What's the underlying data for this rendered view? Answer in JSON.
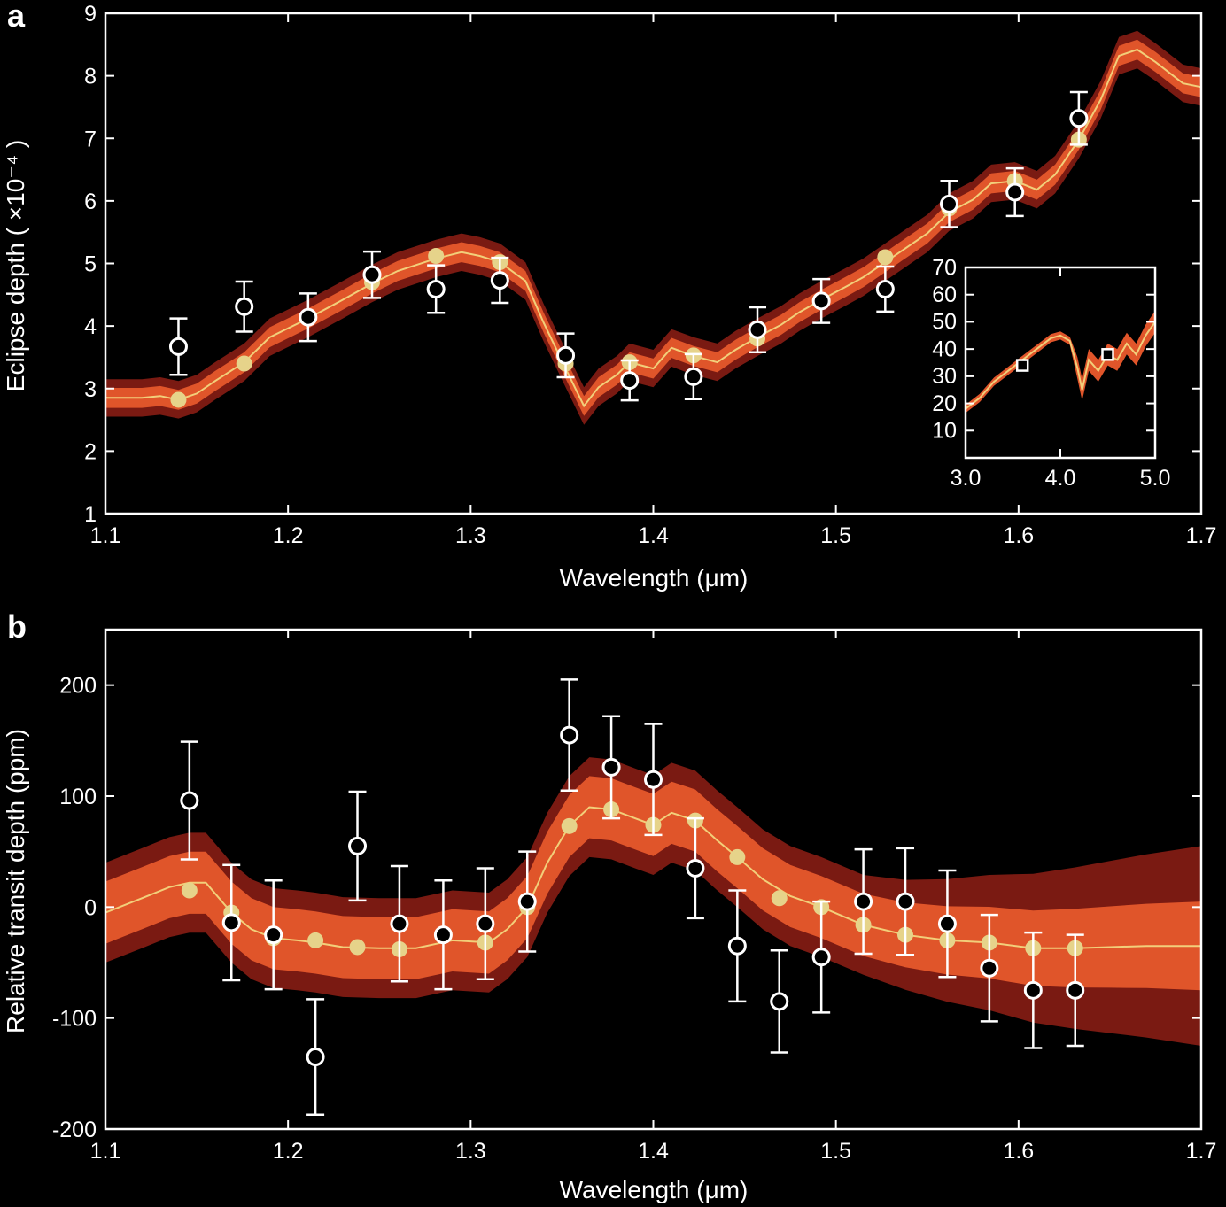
{
  "colors": {
    "background": "#000000",
    "axes": "#ffffff",
    "band_outer": "#7a1a12",
    "band_inner": "#e0552a",
    "model_line": "#f2cf7a",
    "model_point": "#e6d38a",
    "data_point": "#ffffff"
  },
  "chart_data": [
    {
      "type": "scatter",
      "panel_label": "a",
      "xlabel": "Wavelength  (μm)",
      "ylabel": "Eclipse depth ( ×10⁻⁴ )",
      "xlim": [
        1.1,
        1.7
      ],
      "ylim": [
        1,
        9
      ],
      "xticks": [
        "1.1",
        "1.2",
        "1.3",
        "1.4",
        "1.5",
        "1.6",
        "1.7"
      ],
      "yticks": [
        "1",
        "2",
        "3",
        "4",
        "5",
        "6",
        "7",
        "8",
        "9"
      ],
      "data_points": {
        "x": [
          1.14,
          1.176,
          1.211,
          1.246,
          1.281,
          1.316,
          1.352,
          1.387,
          1.422,
          1.457,
          1.492,
          1.527,
          1.562,
          1.598,
          1.633
        ],
        "y": [
          3.67,
          4.31,
          4.14,
          4.82,
          4.59,
          4.73,
          3.53,
          3.13,
          3.19,
          3.94,
          4.4,
          4.59,
          5.95,
          6.14,
          7.32
        ],
        "err": [
          0.45,
          0.4,
          0.38,
          0.37,
          0.38,
          0.36,
          0.35,
          0.32,
          0.36,
          0.36,
          0.35,
          0.36,
          0.37,
          0.38,
          0.42
        ]
      },
      "model_points": {
        "x": [
          1.14,
          1.176,
          1.211,
          1.246,
          1.281,
          1.316,
          1.352,
          1.387,
          1.422,
          1.457,
          1.492,
          1.527,
          1.562,
          1.598,
          1.633
        ],
        "y": [
          2.82,
          3.4,
          4.14,
          4.7,
          5.12,
          5.02,
          3.4,
          3.42,
          3.53,
          3.8,
          4.4,
          5.1,
          5.88,
          6.32,
          6.98
        ]
      },
      "model_line": {
        "x": [
          1.1,
          1.12,
          1.13,
          1.14,
          1.15,
          1.16,
          1.176,
          1.19,
          1.211,
          1.23,
          1.246,
          1.26,
          1.281,
          1.295,
          1.305,
          1.316,
          1.33,
          1.34,
          1.352,
          1.362,
          1.37,
          1.38,
          1.387,
          1.4,
          1.41,
          1.422,
          1.435,
          1.445,
          1.457,
          1.47,
          1.48,
          1.492,
          1.505,
          1.515,
          1.527,
          1.54,
          1.55,
          1.562,
          1.575,
          1.585,
          1.598,
          1.61,
          1.62,
          1.633,
          1.645,
          1.655,
          1.665,
          1.675,
          1.69,
          1.7
        ],
        "y": [
          2.85,
          2.85,
          2.88,
          2.82,
          2.92,
          3.12,
          3.42,
          3.82,
          4.12,
          4.42,
          4.68,
          4.88,
          5.08,
          5.18,
          5.12,
          5.02,
          4.72,
          4.05,
          3.32,
          2.72,
          3.02,
          3.22,
          3.42,
          3.32,
          3.65,
          3.52,
          3.42,
          3.62,
          3.82,
          4.02,
          4.22,
          4.42,
          4.62,
          4.78,
          5.02,
          5.28,
          5.48,
          5.82,
          6.02,
          6.28,
          6.32,
          6.18,
          6.42,
          6.98,
          7.62,
          8.32,
          8.42,
          8.22,
          7.88,
          7.82
        ]
      },
      "band_inner_halfwidth": 0.16,
      "band_outer_halfwidth": 0.3,
      "inset": {
        "type": "line",
        "xlim": [
          3.0,
          5.0
        ],
        "ylim": [
          0,
          70
        ],
        "xticks": [
          "3.0",
          "4.0",
          "5.0"
        ],
        "yticks": [
          "10",
          "20",
          "30",
          "40",
          "50",
          "60",
          "70"
        ],
        "model_line": {
          "x": [
            3.0,
            3.15,
            3.3,
            3.45,
            3.6,
            3.75,
            3.9,
            4.0,
            4.1,
            4.18,
            4.23,
            4.3,
            4.4,
            4.5,
            4.6,
            4.7,
            4.8,
            4.9,
            5.0
          ],
          "y": [
            18,
            22,
            28,
            32,
            36,
            40,
            44,
            45,
            43,
            33,
            25,
            36,
            32,
            38,
            36,
            42,
            38,
            45,
            50
          ]
        },
        "data_points": {
          "x": [
            3.6,
            4.5
          ],
          "y": [
            34,
            38
          ]
        }
      }
    },
    {
      "type": "scatter",
      "panel_label": "b",
      "xlabel": "Wavelength  (μm)",
      "ylabel": "Relative transit depth (ppm)",
      "xlim": [
        1.1,
        1.7
      ],
      "ylim": [
        -200,
        250
      ],
      "xticks": [
        "1.1",
        "1.2",
        "1.3",
        "1.4",
        "1.5",
        "1.6",
        "1.7"
      ],
      "yticks": [
        "-200",
        "-100",
        "0",
        "100",
        "200"
      ],
      "data_points": {
        "x": [
          1.146,
          1.169,
          1.192,
          1.215,
          1.238,
          1.261,
          1.285,
          1.308,
          1.331,
          1.354,
          1.377,
          1.4,
          1.423,
          1.446,
          1.469,
          1.492,
          1.515,
          1.538,
          1.561,
          1.584,
          1.608,
          1.631
        ],
        "y": [
          96,
          -14,
          -25,
          -135,
          55,
          -15,
          -25,
          -15,
          5,
          155,
          126,
          115,
          35,
          -35,
          -85,
          -45,
          5,
          5,
          -15,
          -55,
          -75,
          -75
        ],
        "err": [
          53,
          52,
          49,
          52,
          49,
          52,
          49,
          50,
          45,
          50,
          46,
          50,
          45,
          50,
          46,
          50,
          47,
          48,
          48,
          48,
          52,
          50
        ]
      },
      "model_points": {
        "x": [
          1.146,
          1.169,
          1.192,
          1.215,
          1.238,
          1.261,
          1.285,
          1.308,
          1.331,
          1.354,
          1.377,
          1.4,
          1.423,
          1.446,
          1.469,
          1.492,
          1.515,
          1.538,
          1.561,
          1.584,
          1.608,
          1.631
        ],
        "y": [
          15,
          -5,
          -28,
          -30,
          -36,
          -38,
          -25,
          -32,
          0,
          73,
          88,
          74,
          78,
          45,
          8,
          0,
          -16,
          -25,
          -30,
          -32,
          -37,
          -37
        ]
      },
      "model_line": {
        "x": [
          1.1,
          1.12,
          1.135,
          1.146,
          1.155,
          1.169,
          1.18,
          1.192,
          1.205,
          1.215,
          1.23,
          1.25,
          1.27,
          1.29,
          1.31,
          1.32,
          1.331,
          1.342,
          1.354,
          1.365,
          1.377,
          1.39,
          1.4,
          1.41,
          1.423,
          1.435,
          1.446,
          1.46,
          1.475,
          1.492,
          1.515,
          1.538,
          1.561,
          1.584,
          1.608,
          1.631,
          1.65,
          1.67,
          1.7
        ],
        "y": [
          -5,
          8,
          18,
          22,
          22,
          -5,
          -20,
          -28,
          -30,
          -32,
          -36,
          -37,
          -37,
          -30,
          -32,
          -20,
          0,
          40,
          73,
          90,
          88,
          80,
          74,
          85,
          78,
          60,
          45,
          25,
          10,
          0,
          -16,
          -25,
          -30,
          -32,
          -37,
          -37,
          -36,
          -35,
          -35
        ]
      },
      "band_inner_halfwidth_left": 28,
      "band_inner_halfwidth_right": 40,
      "band_outer_halfwidth_left": 45,
      "band_outer_halfwidth_right": 90
    }
  ]
}
